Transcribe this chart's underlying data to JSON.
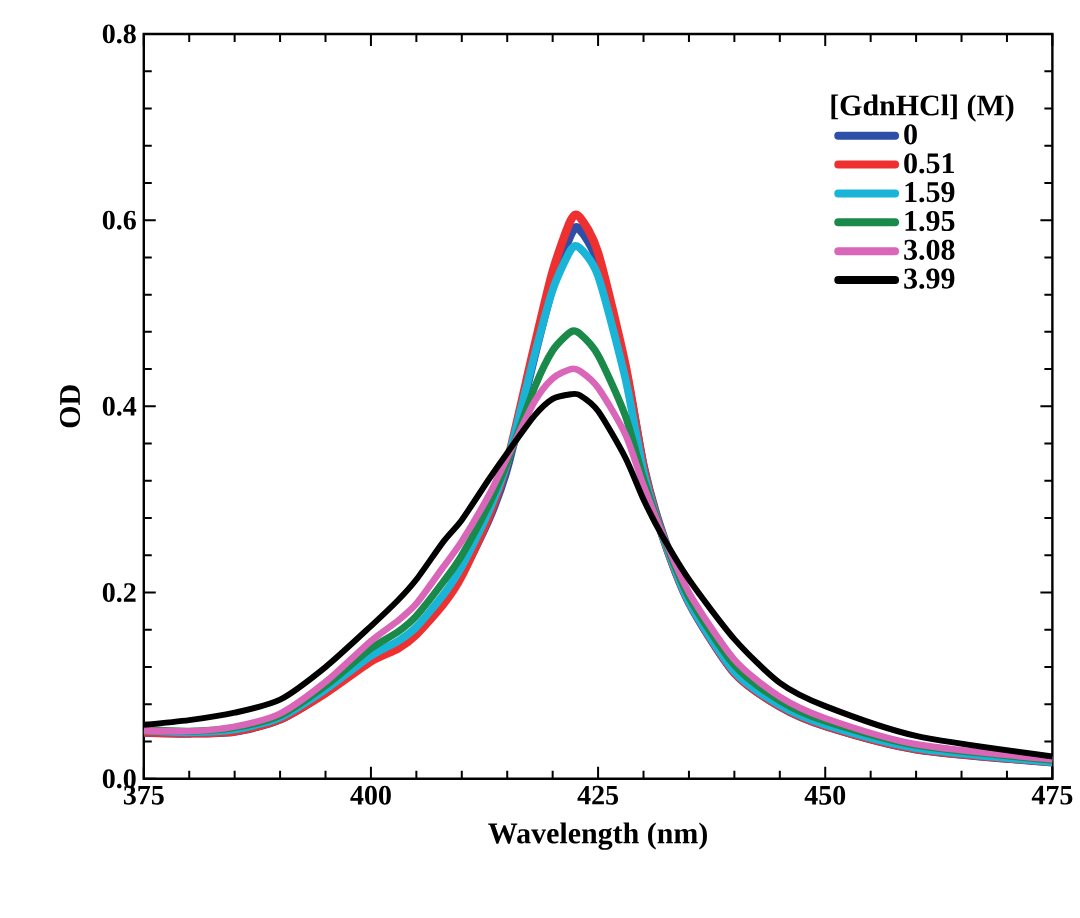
{
  "chart_data": {
    "type": "line",
    "xlabel": "Wavelength (nm)",
    "ylabel": "OD",
    "legend_title": "[GdnHCl] (M)",
    "legend": "top right",
    "grid": false,
    "line_style": "solid",
    "marker": "none",
    "x": [
      375,
      380,
      385,
      390,
      395,
      400,
      403,
      405,
      408,
      410,
      413,
      415,
      418,
      420,
      422,
      423,
      425,
      428,
      430,
      432,
      435,
      440,
      445,
      450,
      460,
      475
    ],
    "xlim": [
      375,
      475
    ],
    "xticks": [
      375,
      400,
      425,
      450,
      475
    ],
    "ylim": [
      0,
      0.8
    ],
    "yticks": [
      {
        "value": 0,
        "label": "0.0"
      },
      {
        "value": 0.2,
        "label": "0.2"
      },
      {
        "value": 0.4,
        "label": "0.4"
      },
      {
        "value": 0.6,
        "label": "0.6"
      },
      {
        "value": 0.8,
        "label": "0.8"
      }
    ],
    "series": [
      {
        "name": "0",
        "color": "#2e4fa8",
        "values": [
          0.05,
          0.049,
          0.051,
          0.064,
          0.093,
          0.128,
          0.142,
          0.157,
          0.19,
          0.22,
          0.28,
          0.335,
          0.455,
          0.53,
          0.585,
          0.59,
          0.555,
          0.44,
          0.335,
          0.265,
          0.19,
          0.114,
          0.078,
          0.057,
          0.032,
          0.018
        ]
      },
      {
        "name": "0.51",
        "color": "#ee3030",
        "values": [
          0.05,
          0.049,
          0.051,
          0.064,
          0.092,
          0.126,
          0.14,
          0.155,
          0.188,
          0.218,
          0.282,
          0.34,
          0.465,
          0.545,
          0.6,
          0.603,
          0.565,
          0.445,
          0.335,
          0.264,
          0.19,
          0.114,
          0.078,
          0.057,
          0.032,
          0.018
        ]
      },
      {
        "name": "1.59",
        "color": "#1ab4d8",
        "values": [
          0.052,
          0.05,
          0.053,
          0.066,
          0.096,
          0.132,
          0.148,
          0.163,
          0.198,
          0.228,
          0.288,
          0.34,
          0.455,
          0.525,
          0.568,
          0.57,
          0.54,
          0.43,
          0.33,
          0.264,
          0.19,
          0.115,
          0.079,
          0.058,
          0.033,
          0.018
        ]
      },
      {
        "name": "1.95",
        "color": "#1a8a4a",
        "values": [
          0.053,
          0.051,
          0.055,
          0.068,
          0.1,
          0.14,
          0.158,
          0.175,
          0.212,
          0.24,
          0.295,
          0.34,
          0.42,
          0.46,
          0.48,
          0.478,
          0.455,
          0.39,
          0.322,
          0.265,
          0.195,
          0.122,
          0.084,
          0.062,
          0.036,
          0.02
        ]
      },
      {
        "name": "3.08",
        "color": "#d966b8",
        "values": [
          0.052,
          0.051,
          0.056,
          0.07,
          0.104,
          0.148,
          0.17,
          0.188,
          0.228,
          0.255,
          0.305,
          0.345,
          0.405,
          0.43,
          0.44,
          0.438,
          0.42,
          0.37,
          0.315,
          0.265,
          0.2,
          0.128,
          0.088,
          0.065,
          0.037,
          0.021
        ]
      },
      {
        "name": "3.99",
        "color": "#000000",
        "values": [
          0.058,
          0.063,
          0.071,
          0.085,
          0.12,
          0.164,
          0.192,
          0.214,
          0.255,
          0.278,
          0.322,
          0.35,
          0.39,
          0.408,
          0.413,
          0.412,
          0.395,
          0.345,
          0.3,
          0.262,
          0.214,
          0.15,
          0.103,
          0.078,
          0.046,
          0.024
        ]
      }
    ]
  }
}
